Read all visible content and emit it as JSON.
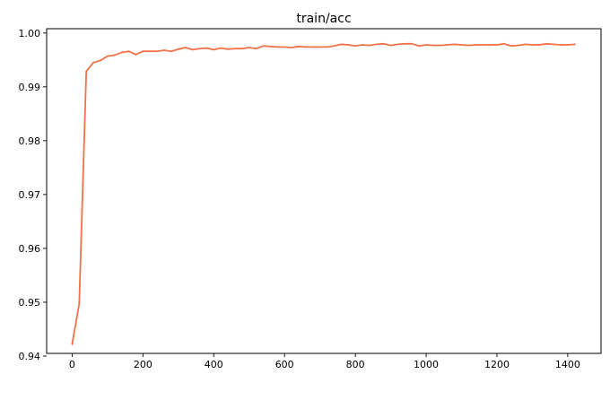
{
  "chart_data": {
    "type": "line",
    "title": "train/acc",
    "xlabel": "",
    "ylabel": "",
    "xlim": [
      -72,
      1494
    ],
    "ylim": [
      0.9405,
      1.0008
    ],
    "x_ticks": [
      "0",
      "200",
      "400",
      "600",
      "800",
      "1000",
      "1200",
      "1400"
    ],
    "y_ticks": [
      "0.94",
      "0.95",
      "0.96",
      "0.97",
      "0.98",
      "0.99",
      "1.00"
    ],
    "grid": false,
    "legend": "none",
    "series": [
      {
        "color": "#f0714a",
        "x": [
          0,
          20,
          40,
          60,
          80,
          100,
          120,
          140,
          160,
          180,
          200,
          220,
          240,
          260,
          280,
          300,
          320,
          340,
          360,
          380,
          400,
          420,
          440,
          460,
          480,
          500,
          520,
          540,
          560,
          580,
          600,
          620,
          640,
          660,
          680,
          700,
          720,
          740,
          760,
          780,
          800,
          820,
          840,
          860,
          880,
          900,
          920,
          940,
          960,
          980,
          1000,
          1020,
          1040,
          1060,
          1080,
          1100,
          1120,
          1140,
          1160,
          1180,
          1200,
          1220,
          1240,
          1260,
          1280,
          1300,
          1320,
          1340,
          1360,
          1380,
          1400,
          1420
        ],
        "values": [
          0.9422,
          0.9497,
          0.9929,
          0.9945,
          0.9949,
          0.9957,
          0.9959,
          0.9964,
          0.9966,
          0.996,
          0.9966,
          0.9966,
          0.9966,
          0.9968,
          0.9966,
          0.997,
          0.9973,
          0.9969,
          0.9971,
          0.9972,
          0.9969,
          0.9972,
          0.997,
          0.9971,
          0.9971,
          0.9973,
          0.9971,
          0.9976,
          0.9975,
          0.9974,
          0.9974,
          0.9973,
          0.9975,
          0.9974,
          0.9974,
          0.9974,
          0.9974,
          0.9976,
          0.9979,
          0.9978,
          0.9976,
          0.9978,
          0.9977,
          0.9979,
          0.998,
          0.9977,
          0.9979,
          0.998,
          0.998,
          0.9976,
          0.9978,
          0.9977,
          0.9977,
          0.9978,
          0.9979,
          0.9978,
          0.9977,
          0.9978,
          0.9978,
          0.9978,
          0.9978,
          0.998,
          0.9976,
          0.9977,
          0.9979,
          0.9978,
          0.9978,
          0.998,
          0.9979,
          0.9978,
          0.9978,
          0.9979
        ]
      }
    ]
  }
}
